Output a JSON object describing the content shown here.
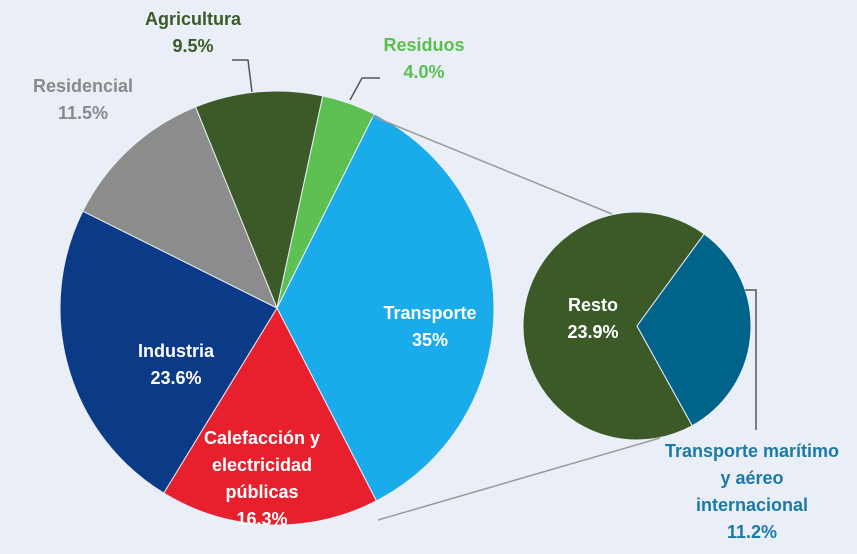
{
  "chart_data": [
    {
      "type": "pie",
      "categories": [
        "Transporte",
        "Calefacción y electricidad públicas",
        "Industria",
        "Residencial",
        "Agricultura",
        "Residuos"
      ],
      "values": [
        35,
        16.3,
        23.6,
        11.5,
        9.5,
        4.0
      ],
      "value_labels": [
        "35%",
        "16.3%",
        "23.6%",
        "11.5%",
        "9.5%",
        "4.0%"
      ],
      "colors": [
        "#1aabea",
        "#e8202e",
        "#0b3a86",
        "#8c8c8c",
        "#3b5a28",
        "#5cc052"
      ]
    },
    {
      "type": "pie",
      "categories": [
        "Resto",
        "Transporte marítimo y aéreo internacional"
      ],
      "values": [
        23.9,
        11.2
      ],
      "value_labels": [
        "23.9%",
        "11.2%"
      ],
      "colors": [
        "#3b5a28",
        "#006389"
      ]
    }
  ]
}
